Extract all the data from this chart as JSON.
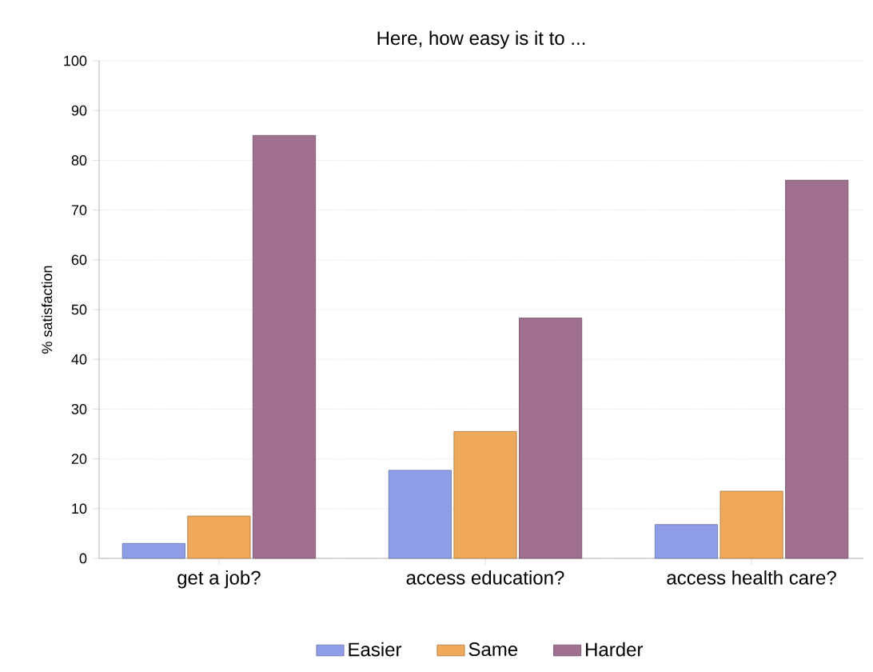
{
  "chart_data": {
    "type": "bar",
    "title": "Here, how easy is it to ...",
    "ylabel": "% satisfaction",
    "categories": [
      "get a job?",
      "access education?",
      "access health care?"
    ],
    "series": [
      {
        "name": "Easier",
        "color": "#8f9de8",
        "values": [
          3,
          17.7,
          6.8
        ]
      },
      {
        "name": "Same",
        "color": "#eeaa5a",
        "values": [
          8.5,
          25.5,
          13.5
        ]
      },
      {
        "name": "Harder",
        "color": "#a07090",
        "values": [
          85,
          48.3,
          76
        ]
      }
    ],
    "ylim": [
      0,
      100
    ],
    "yticks": [
      0,
      10,
      20,
      30,
      40,
      50,
      60,
      70,
      80,
      90,
      100
    ],
    "grid": "y",
    "legend": "bottom"
  }
}
